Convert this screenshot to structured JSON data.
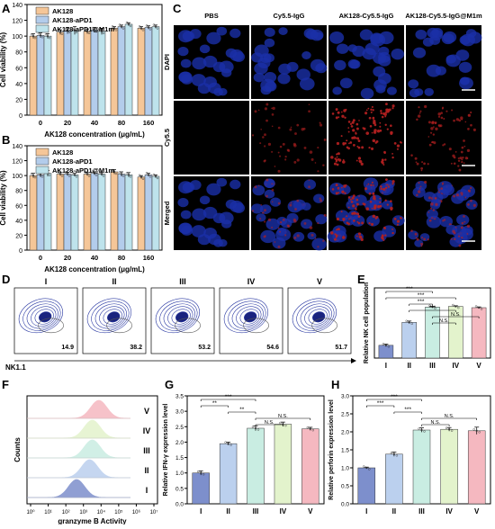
{
  "panel_letters": [
    "A",
    "B",
    "C",
    "D",
    "E",
    "F",
    "G",
    "H"
  ],
  "colors": {
    "ak128": "#F5C698",
    "ak128_apd1": "#B3CCEB",
    "ak128_apd1_m1m": "#BEE3EC",
    "I": "#7D8FCC",
    "II": "#BBD0EE",
    "III": "#C9EDE2",
    "IV": "#E3F3CC",
    "V": "#F5B8C0",
    "dapi": "#1A2FA8",
    "cy55": "#B02020"
  },
  "chart_data": [
    {
      "id": "A",
      "type": "bar",
      "categories": [
        "0",
        "20",
        "40",
        "80",
        "160"
      ],
      "series": [
        {
          "name": "AK128",
          "values": [
            100,
            105,
            106,
            110,
            110
          ],
          "err": [
            3,
            3,
            3,
            2,
            2
          ]
        },
        {
          "name": "AK128-aPD1",
          "values": [
            101,
            107,
            108,
            112,
            111
          ],
          "err": [
            3,
            4,
            3,
            2,
            2
          ]
        },
        {
          "name": "AK128-aPD1@M1m",
          "values": [
            100,
            107,
            106,
            115,
            112
          ],
          "err": [
            3,
            5,
            4,
            2,
            2
          ]
        }
      ],
      "ylim": [
        0,
        140
      ],
      "yticks": [
        "0",
        "20",
        "40",
        "60",
        "80",
        "100",
        "120",
        "140"
      ],
      "ylabel": "Cell viability (%)",
      "xlabel": "AK128 concentration (μg/mL)"
    },
    {
      "id": "B",
      "type": "bar",
      "categories": [
        "0",
        "20",
        "40",
        "80",
        "160"
      ],
      "series": [
        {
          "name": "AK128",
          "values": [
            100,
            102,
            102,
            105,
            98
          ],
          "err": [
            3,
            2,
            2,
            3,
            2
          ]
        },
        {
          "name": "AK128-aPD1",
          "values": [
            101,
            102,
            103,
            102,
            101
          ],
          "err": [
            3,
            2,
            2,
            3,
            2
          ]
        },
        {
          "name": "AK128-aPD1@M1m",
          "values": [
            103,
            101,
            102,
            101,
            99
          ],
          "err": [
            4,
            2,
            2,
            3,
            2
          ]
        }
      ],
      "ylim": [
        0,
        140
      ],
      "yticks": [
        "0",
        "20",
        "40",
        "60",
        "80",
        "100",
        "120",
        "140"
      ],
      "ylabel": "Cell viability (%)",
      "xlabel": "AK128 concentration (μg/mL)"
    },
    {
      "id": "E",
      "type": "bar",
      "categories": [
        "I",
        "II",
        "III",
        "IV",
        "V"
      ],
      "values": [
        1.0,
        2.8,
        4.0,
        4.05,
        3.95
      ],
      "err": [
        0.1,
        0.1,
        0.05,
        0.05,
        0.06
      ],
      "ylim": [
        0,
        5.5
      ],
      "yticks": [],
      "ylabel": "Relative NK cell population",
      "sig": [
        {
          "a": 0,
          "b": 2,
          "label": "***"
        },
        {
          "a": 0,
          "b": 3,
          "label": "***"
        },
        {
          "a": 1,
          "b": 2,
          "label": "***"
        },
        {
          "a": 1,
          "b": 3,
          "label": "***"
        },
        {
          "a": 2,
          "b": 4,
          "label": "N.S."
        },
        {
          "a": 2,
          "b": 3,
          "label": "N.S."
        }
      ]
    },
    {
      "id": "G",
      "type": "bar",
      "categories": [
        "I",
        "II",
        "III",
        "IV",
        "V"
      ],
      "values": [
        1.0,
        1.95,
        2.45,
        2.58,
        2.43
      ],
      "err": [
        0.07,
        0.05,
        0.08,
        0.07,
        0.05
      ],
      "ylim": [
        0,
        3.5
      ],
      "yticks": [
        "0.0",
        "0.5",
        "1.0",
        "1.5",
        "2.0",
        "2.5",
        "3.0",
        "3.5"
      ],
      "ylabel": "Relative IFN-γ expression level",
      "sig": [
        {
          "a": 0,
          "b": 2,
          "label": "***"
        },
        {
          "a": 0,
          "b": 1,
          "label": "**"
        },
        {
          "a": 1,
          "b": 2,
          "label": "**"
        },
        {
          "a": 2,
          "b": 4,
          "label": "N.S."
        },
        {
          "a": 2,
          "b": 3,
          "label": "N.S."
        }
      ]
    },
    {
      "id": "H",
      "type": "bar",
      "categories": [
        "I",
        "II",
        "III",
        "IV",
        "V"
      ],
      "values": [
        1.0,
        1.38,
        2.05,
        2.07,
        2.03
      ],
      "err": [
        0.02,
        0.06,
        0.06,
        0.05,
        0.1
      ],
      "ylim": [
        0,
        3.0
      ],
      "yticks": [
        "0.0",
        "0.5",
        "1.0",
        "1.5",
        "2.0",
        "2.5",
        "3.0"
      ],
      "ylabel": "Relative perforin expression level",
      "sig": [
        {
          "a": 0,
          "b": 2,
          "label": "***"
        },
        {
          "a": 0,
          "b": 1,
          "label": "***"
        },
        {
          "a": 1,
          "b": 2,
          "label": "***"
        },
        {
          "a": 2,
          "b": 4,
          "label": "N.S."
        },
        {
          "a": 2,
          "b": 3,
          "label": "N.S."
        }
      ]
    }
  ],
  "panel_c": {
    "columns": [
      "PBS",
      "Cy5.5-IgG",
      "AK128-Cy5.5-IgG",
      "AK128-Cy5.5-IgG@M1m"
    ],
    "rows": [
      "DAPI",
      "Cy5.5",
      "Merged"
    ]
  },
  "panel_d": {
    "groups": [
      "I",
      "II",
      "III",
      "IV",
      "V"
    ],
    "percents": [
      "14.9",
      "38.2",
      "53.2",
      "54.6",
      "51.7"
    ],
    "xlabel": "NK1.1"
  },
  "panel_f": {
    "groups": [
      "V",
      "IV",
      "III",
      "II",
      "I"
    ],
    "peaks": [
      0.55,
      0.5,
      0.5,
      0.48,
      0.38
    ],
    "xlabel": "granzyme B Activity",
    "ylabel": "Counts",
    "xticks": [
      "10⁰",
      "10¹",
      "10²",
      "10³",
      "10⁴",
      "10⁵",
      "10⁶",
      "10⁷"
    ]
  }
}
